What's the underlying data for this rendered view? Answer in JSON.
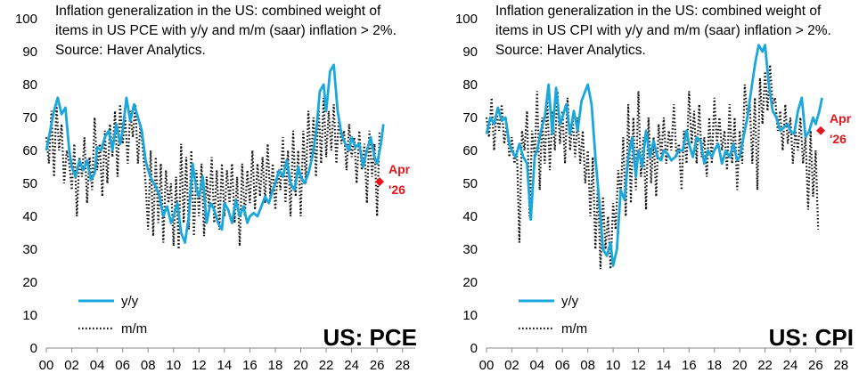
{
  "colors": {
    "yy": "#1aa7dd",
    "mm": "#111111",
    "marker": "#e8141b",
    "axis": "#888888"
  },
  "chart_data": [
    {
      "type": "line",
      "title_lines": [
        "Inflation generalization in the US: combined weight of",
        "items in US PCE with y/y and m/m (saar) inflation > 2%.",
        "Source: Haver Analytics."
      ],
      "corner_label": "US: PCE",
      "xlim": [
        0,
        29
      ],
      "ylim": [
        0,
        100
      ],
      "x_ticks": [
        0,
        2,
        4,
        6,
        8,
        10,
        12,
        14,
        16,
        18,
        20,
        22,
        24,
        26,
        28
      ],
      "x_tick_labels": [
        "00",
        "02",
        "04",
        "06",
        "08",
        "10",
        "12",
        "14",
        "16",
        "18",
        "20",
        "22",
        "24",
        "26",
        "28"
      ],
      "y_ticks": [
        0,
        10,
        20,
        30,
        40,
        50,
        60,
        70,
        80,
        90,
        100
      ],
      "y_tick_labels": [
        "0",
        "10",
        "20",
        "30",
        "40",
        "50",
        "60",
        "70",
        "80",
        "90",
        "100"
      ],
      "legend_position": "bottom-left",
      "series": [
        {
          "name": "y/y",
          "style": "solid",
          "x": [
            0.0,
            0.3,
            0.6,
            0.9,
            1.2,
            1.5,
            1.8,
            2.0,
            2.3,
            2.6,
            2.9,
            3.2,
            3.5,
            3.8,
            4.0,
            4.3,
            4.6,
            4.9,
            5.2,
            5.5,
            5.8,
            6.0,
            6.3,
            6.6,
            6.9,
            7.2,
            7.5,
            7.8,
            8.0,
            8.3,
            8.6,
            8.9,
            9.2,
            9.5,
            9.8,
            10.0,
            10.3,
            10.6,
            10.9,
            11.2,
            11.5,
            11.8,
            12.0,
            12.3,
            12.6,
            12.9,
            13.2,
            13.5,
            13.8,
            14.0,
            14.3,
            14.6,
            14.9,
            15.2,
            15.5,
            15.8,
            16.0,
            16.3,
            16.6,
            16.9,
            17.2,
            17.5,
            17.8,
            18.0,
            18.3,
            18.6,
            18.9,
            19.2,
            19.5,
            19.8,
            20.0,
            20.3,
            20.6,
            20.9,
            21.2,
            21.5,
            21.8,
            22.0,
            22.3,
            22.6,
            22.9,
            23.2,
            23.5,
            23.8,
            24.0,
            24.3,
            24.6,
            24.9,
            25.2,
            25.5,
            25.8,
            26.0,
            26.3,
            26.5
          ],
          "y": [
            60,
            66,
            72,
            76,
            71,
            73,
            60,
            55,
            52,
            57,
            54,
            57,
            51,
            53,
            61,
            60,
            64,
            66,
            60,
            68,
            62,
            66,
            76,
            69,
            74,
            70,
            66,
            57,
            54,
            51,
            49,
            46,
            40,
            43,
            38,
            40,
            44,
            35,
            32,
            40,
            56,
            48,
            46,
            52,
            38,
            44,
            42,
            38,
            36,
            44,
            42,
            38,
            45,
            40,
            43,
            38,
            40,
            41,
            40,
            43,
            46,
            44,
            48,
            50,
            54,
            52,
            57,
            50,
            48,
            55,
            52,
            50,
            53,
            58,
            65,
            78,
            80,
            72,
            84,
            86,
            72,
            65,
            62,
            60,
            64,
            61,
            62,
            55,
            60,
            64,
            58,
            56,
            62,
            68
          ]
        },
        {
          "name": "m/m",
          "style": "dotted",
          "x": [
            0.0,
            0.2,
            0.4,
            0.6,
            0.8,
            1.0,
            1.2,
            1.4,
            1.6,
            1.8,
            2.0,
            2.2,
            2.4,
            2.6,
            2.8,
            3.0,
            3.2,
            3.4,
            3.6,
            3.8,
            4.0,
            4.2,
            4.4,
            4.6,
            4.8,
            5.0,
            5.2,
            5.4,
            5.6,
            5.8,
            6.0,
            6.2,
            6.4,
            6.6,
            6.8,
            7.0,
            7.2,
            7.4,
            7.6,
            7.8,
            8.0,
            8.2,
            8.4,
            8.6,
            8.8,
            9.0,
            9.2,
            9.4,
            9.6,
            9.8,
            10.0,
            10.2,
            10.4,
            10.6,
            10.8,
            11.0,
            11.2,
            11.4,
            11.6,
            11.8,
            12.0,
            12.2,
            12.4,
            12.6,
            12.8,
            13.0,
            13.2,
            13.4,
            13.6,
            13.8,
            14.0,
            14.2,
            14.4,
            14.6,
            14.8,
            15.0,
            15.2,
            15.4,
            15.6,
            15.8,
            16.0,
            16.2,
            16.4,
            16.6,
            16.8,
            17.0,
            17.2,
            17.4,
            17.6,
            17.8,
            18.0,
            18.2,
            18.4,
            18.6,
            18.8,
            19.0,
            19.2,
            19.4,
            19.6,
            19.8,
            20.0,
            20.2,
            20.4,
            20.6,
            20.8,
            21.0,
            21.2,
            21.4,
            21.6,
            21.8,
            22.0,
            22.2,
            22.4,
            22.6,
            22.8,
            23.0,
            23.2,
            23.4,
            23.6,
            23.8,
            24.0,
            24.2,
            24.4,
            24.6,
            24.8,
            25.0,
            25.2,
            25.4,
            25.6,
            25.8,
            26.0,
            26.2
          ],
          "y": [
            64,
            56,
            72,
            52,
            74,
            60,
            68,
            50,
            60,
            56,
            48,
            62,
            40,
            58,
            52,
            64,
            44,
            58,
            48,
            70,
            54,
            62,
            46,
            66,
            50,
            68,
            58,
            72,
            52,
            74,
            62,
            70,
            56,
            72,
            64,
            74,
            56,
            68,
            60,
            50,
            36,
            60,
            34,
            58,
            38,
            56,
            32,
            54,
            44,
            50,
            31,
            52,
            30,
            62,
            38,
            58,
            36,
            60,
            34,
            54,
            40,
            56,
            34,
            52,
            42,
            58,
            38,
            54,
            36,
            56,
            40,
            54,
            44,
            56,
            38,
            52,
            31,
            56,
            40,
            54,
            44,
            60,
            42,
            56,
            46,
            58,
            44,
            62,
            46,
            56,
            42,
            54,
            48,
            64,
            44,
            60,
            40,
            66,
            46,
            60,
            40,
            66,
            50,
            72,
            56,
            70,
            52,
            74,
            56,
            76,
            58,
            72,
            60,
            74,
            56,
            70,
            62,
            66,
            54,
            68,
            58,
            64,
            50,
            66,
            54,
            62,
            44,
            66,
            52,
            62,
            40,
            66
          ]
        }
      ],
      "marker": {
        "x": 26.2,
        "y": 50.5,
        "label_line1": "Apr",
        "label_line2": "'26"
      }
    },
    {
      "type": "line",
      "title_lines": [
        "Inflation generalization in the US: combined weight of",
        "items in US CPI with y/y and m/m (saar) inflation > 2%.",
        "Source: Haver Analytics."
      ],
      "corner_label": "US: CPI",
      "xlim": [
        0,
        29
      ],
      "ylim": [
        0,
        100
      ],
      "x_ticks": [
        0,
        2,
        4,
        6,
        8,
        10,
        12,
        14,
        16,
        18,
        20,
        22,
        24,
        26,
        28
      ],
      "x_tick_labels": [
        "00",
        "02",
        "04",
        "06",
        "08",
        "10",
        "12",
        "14",
        "16",
        "18",
        "20",
        "22",
        "24",
        "26",
        "28"
      ],
      "y_ticks": [
        0,
        10,
        20,
        30,
        40,
        50,
        60,
        70,
        80,
        90,
        100
      ],
      "y_tick_labels": [
        "0",
        "10",
        "20",
        "30",
        "40",
        "50",
        "60",
        "70",
        "80",
        "90",
        "100"
      ],
      "legend_position": "bottom-left",
      "series": [
        {
          "name": "y/y",
          "style": "solid",
          "x": [
            0.0,
            0.3,
            0.6,
            0.9,
            1.2,
            1.5,
            1.8,
            2.0,
            2.3,
            2.6,
            2.9,
            3.2,
            3.5,
            3.8,
            4.0,
            4.3,
            4.6,
            4.9,
            5.2,
            5.5,
            5.8,
            6.0,
            6.3,
            6.6,
            6.9,
            7.2,
            7.5,
            7.8,
            8.0,
            8.3,
            8.6,
            8.9,
            9.2,
            9.5,
            9.8,
            10.0,
            10.3,
            10.6,
            10.9,
            11.2,
            11.5,
            11.8,
            12.0,
            12.3,
            12.6,
            12.9,
            13.2,
            13.5,
            13.8,
            14.0,
            14.3,
            14.6,
            14.9,
            15.2,
            15.5,
            15.8,
            16.0,
            16.3,
            16.6,
            16.9,
            17.2,
            17.5,
            17.8,
            18.0,
            18.3,
            18.6,
            18.9,
            19.2,
            19.5,
            19.8,
            20.0,
            20.3,
            20.6,
            20.9,
            21.2,
            21.5,
            21.8,
            22.0,
            22.3,
            22.6,
            22.9,
            23.2,
            23.5,
            23.8,
            24.0,
            24.3,
            24.6,
            24.9,
            25.2,
            25.5,
            25.8,
            26.0,
            26.3,
            26.5
          ],
          "y": [
            65,
            70,
            68,
            73,
            69,
            70,
            62,
            60,
            58,
            62,
            58,
            56,
            39,
            58,
            60,
            66,
            70,
            80,
            65,
            79,
            68,
            70,
            74,
            65,
            72,
            66,
            75,
            78,
            80,
            74,
            58,
            45,
            30,
            28,
            32,
            25,
            30,
            48,
            45,
            58,
            64,
            52,
            60,
            55,
            66,
            58,
            63,
            58,
            57,
            60,
            59,
            57,
            58,
            60,
            60,
            66,
            62,
            58,
            64,
            63,
            56,
            60,
            58,
            60,
            62,
            56,
            60,
            58,
            62,
            57,
            58,
            64,
            70,
            78,
            86,
            92,
            90,
            92,
            80,
            72,
            70,
            66,
            67,
            68,
            66,
            65,
            72,
            76,
            64,
            66,
            70,
            68,
            72,
            76
          ]
        },
        {
          "name": "m/m",
          "style": "dotted",
          "x": [
            0.0,
            0.2,
            0.4,
            0.6,
            0.8,
            1.0,
            1.2,
            1.4,
            1.6,
            1.8,
            2.0,
            2.2,
            2.4,
            2.6,
            2.8,
            3.0,
            3.2,
            3.4,
            3.6,
            3.8,
            4.0,
            4.2,
            4.4,
            4.6,
            4.8,
            5.0,
            5.2,
            5.4,
            5.6,
            5.8,
            6.0,
            6.2,
            6.4,
            6.6,
            6.8,
            7.0,
            7.2,
            7.4,
            7.6,
            7.8,
            8.0,
            8.2,
            8.4,
            8.6,
            8.8,
            9.0,
            9.2,
            9.4,
            9.6,
            9.8,
            10.0,
            10.2,
            10.4,
            10.6,
            10.8,
            11.0,
            11.2,
            11.4,
            11.6,
            11.8,
            12.0,
            12.2,
            12.4,
            12.6,
            12.8,
            13.0,
            13.2,
            13.4,
            13.6,
            13.8,
            14.0,
            14.2,
            14.4,
            14.6,
            14.8,
            15.0,
            15.2,
            15.4,
            15.6,
            15.8,
            16.0,
            16.2,
            16.4,
            16.6,
            16.8,
            17.0,
            17.2,
            17.4,
            17.6,
            17.8,
            18.0,
            18.2,
            18.4,
            18.6,
            18.8,
            19.0,
            19.2,
            19.4,
            19.6,
            19.8,
            20.0,
            20.2,
            20.4,
            20.6,
            20.8,
            21.0,
            21.2,
            21.4,
            21.6,
            21.8,
            22.0,
            22.2,
            22.4,
            22.6,
            22.8,
            23.0,
            23.2,
            23.4,
            23.6,
            23.8,
            24.0,
            24.2,
            24.4,
            24.6,
            24.8,
            25.0,
            25.2,
            25.4,
            25.6,
            25.8,
            26.0,
            26.2
          ],
          "y": [
            70,
            64,
            76,
            60,
            72,
            66,
            74,
            62,
            68,
            58,
            64,
            56,
            60,
            32,
            66,
            60,
            72,
            40,
            66,
            58,
            78,
            48,
            70,
            56,
            76,
            54,
            72,
            60,
            78,
            62,
            72,
            56,
            76,
            60,
            70,
            58,
            70,
            56,
            66,
            50,
            60,
            40,
            58,
            30,
            50,
            24,
            46,
            30,
            40,
            24,
            44,
            36,
            54,
            46,
            64,
            40,
            74,
            44,
            70,
            48,
            78,
            52,
            64,
            42,
            70,
            50,
            64,
            46,
            68,
            58,
            70,
            56,
            66,
            60,
            74,
            58,
            62,
            48,
            66,
            56,
            78,
            62,
            72,
            56,
            74,
            58,
            64,
            52,
            70,
            56,
            76,
            62,
            70,
            60,
            66,
            54,
            74,
            56,
            70,
            48,
            66,
            56,
            80,
            70,
            74,
            56,
            76,
            48,
            82,
            68,
            84,
            72,
            86,
            74,
            76,
            66,
            72,
            60,
            74,
            62,
            70,
            56,
            66,
            60,
            70,
            56,
            64,
            42,
            66,
            46,
            60,
            36
          ]
        }
      ],
      "marker": {
        "x": 26.4,
        "y": 66,
        "label_line1": "Apr",
        "label_line2": "'26"
      }
    }
  ]
}
